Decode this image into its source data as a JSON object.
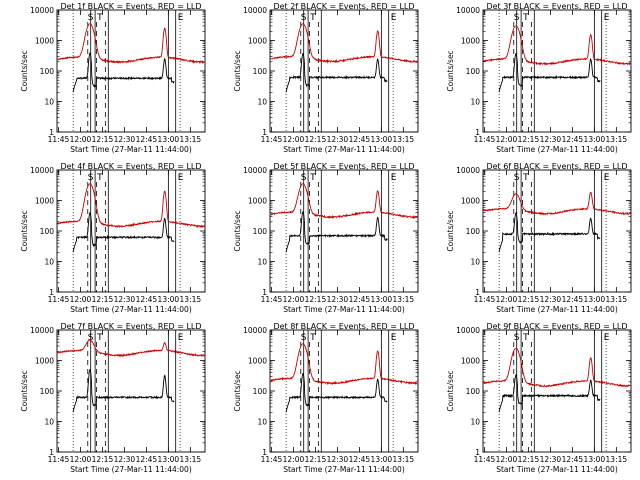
{
  "chart_data": {
    "type": "line",
    "scale": "log",
    "ylim": [
      1,
      10000
    ],
    "yticks": [
      "1",
      "10",
      "100",
      "1000",
      "10000"
    ],
    "xticks": [
      "11:45",
      "12:00",
      "12:15",
      "12:30",
      "12:45",
      "13:00",
      "13:15"
    ],
    "ylabel": "Counts/sec",
    "xlabel": "Start Time (27-Mar-11 11:44:00)",
    "markers": [
      "S",
      "T",
      "E"
    ],
    "series_colors": {
      "events": "#000000",
      "lld": "#cc0000"
    },
    "panels": [
      {
        "title": "Det 1f BLACK = Events, RED = LLD",
        "red_base": 240,
        "red_peak": 3500,
        "red_peak2": 2500,
        "black_base": 58,
        "black_peak": 150
      },
      {
        "title": "Det 2f BLACK = Events, RED = LLD",
        "red_base": 250,
        "red_peak": 3500,
        "red_peak2": 2000,
        "black_base": 62,
        "black_peak": 140
      },
      {
        "title": "Det 3f BLACK = Events, RED = LLD",
        "red_base": 210,
        "red_peak": 3000,
        "red_peak2": 1500,
        "black_base": 62,
        "black_peak": 140
      },
      {
        "title": "Det 4f BLACK = Events, RED = LLD",
        "red_base": 175,
        "red_peak": 3500,
        "red_peak2": 2000,
        "black_base": 62,
        "black_peak": 150
      },
      {
        "title": "Det 5f BLACK = Events, RED = LLD",
        "red_base": 350,
        "red_peak": 3500,
        "red_peak2": 2000,
        "black_base": 70,
        "black_peak": 160
      },
      {
        "title": "Det 6f BLACK = Events, RED = LLD",
        "red_base": 450,
        "red_peak": 1600,
        "red_peak2": 1800,
        "black_base": 80,
        "black_peak": 140
      },
      {
        "title": "Det 7f BLACK = Events, RED = LLD",
        "red_base": 1800,
        "red_peak": 4500,
        "red_peak2": 3500,
        "black_base": 62,
        "black_peak": 200
      },
      {
        "title": "Det 8f BLACK = Events, RED = LLD",
        "red_base": 220,
        "red_peak": 3500,
        "red_peak2": 2000,
        "black_base": 62,
        "black_peak": 140
      },
      {
        "title": "Det 9f BLACK = Events, RED = LLD",
        "red_base": 180,
        "red_peak": 2500,
        "red_peak2": 1200,
        "black_base": 70,
        "black_peak": 120
      }
    ]
  }
}
